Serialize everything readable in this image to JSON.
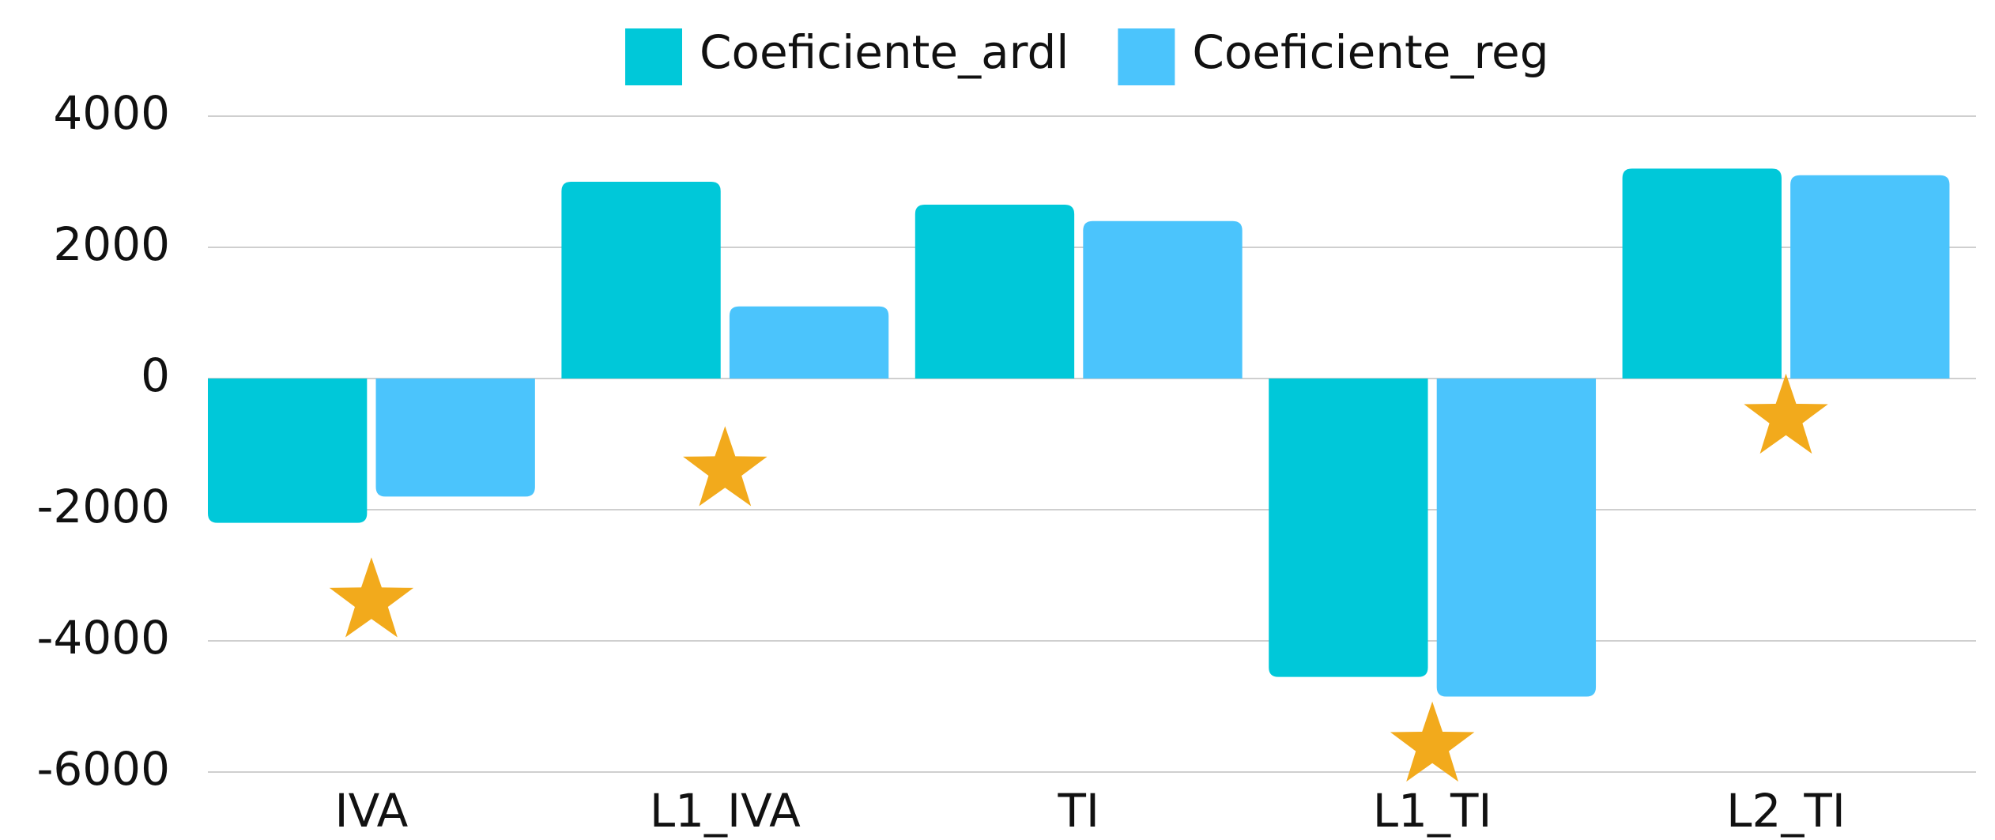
{
  "chart_data": {
    "type": "bar",
    "categories": [
      "IVA",
      "L1_IVA",
      "TI",
      "L1_TI",
      "L2_TI"
    ],
    "series": [
      {
        "name": "Coeficiente_ardl",
        "color": "#00c8d9",
        "values": [
          -2200,
          3000,
          2650,
          -4550,
          3200
        ]
      },
      {
        "name": "Coeficiente_reg",
        "color": "#4bc4fc",
        "values": [
          -1800,
          1100,
          2400,
          -4850,
          3100
        ]
      }
    ],
    "markers": {
      "color": "#f2aa1c",
      "values": [
        -3400,
        -1400,
        null,
        -5600,
        -600
      ]
    },
    "ylim": [
      -6000,
      4000
    ],
    "yticks": [
      -6000,
      -4000,
      -2000,
      0,
      2000,
      4000
    ],
    "grid": true,
    "legend": "top"
  }
}
